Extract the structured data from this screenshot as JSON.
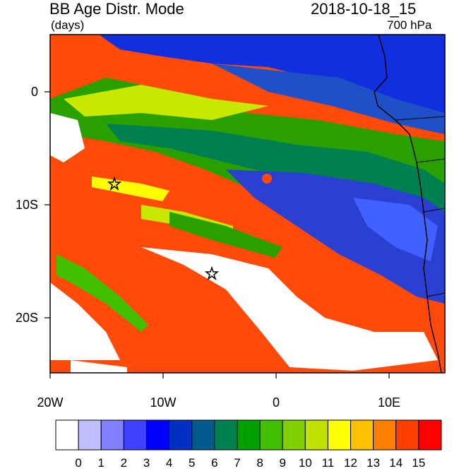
{
  "header": {
    "title": "BB Age Distr. Mode",
    "units": "(days)",
    "datetime": "2018-10-18_15",
    "level": "700 hPa"
  },
  "map": {
    "lon_ticks": [
      "20W",
      "10W",
      "0",
      "10E"
    ],
    "lat_ticks": [
      "0",
      "10S",
      "20S"
    ],
    "lon_range": [
      -20,
      15
    ],
    "lat_range": [
      -25,
      5
    ],
    "markers": [
      {
        "label": "star",
        "lon": -14.3,
        "lat": -8.1
      },
      {
        "label": "star",
        "lon": -5.6,
        "lat": -16.0
      }
    ]
  },
  "colorbar": {
    "labels": [
      "0",
      "1",
      "2",
      "3",
      "4",
      "5",
      "6",
      "7",
      "8",
      "9",
      "10",
      "11",
      "12",
      "13",
      "14",
      "15"
    ],
    "colors": [
      "#ffffff",
      "#c0c0ff",
      "#8080ff",
      "#4040ff",
      "#0000ff",
      "#0030c0",
      "#005a8c",
      "#008050",
      "#00a000",
      "#40c000",
      "#80d000",
      "#c0e000",
      "#ffff00",
      "#ffc000",
      "#ff8000",
      "#ff4000",
      "#ff0000"
    ]
  }
}
